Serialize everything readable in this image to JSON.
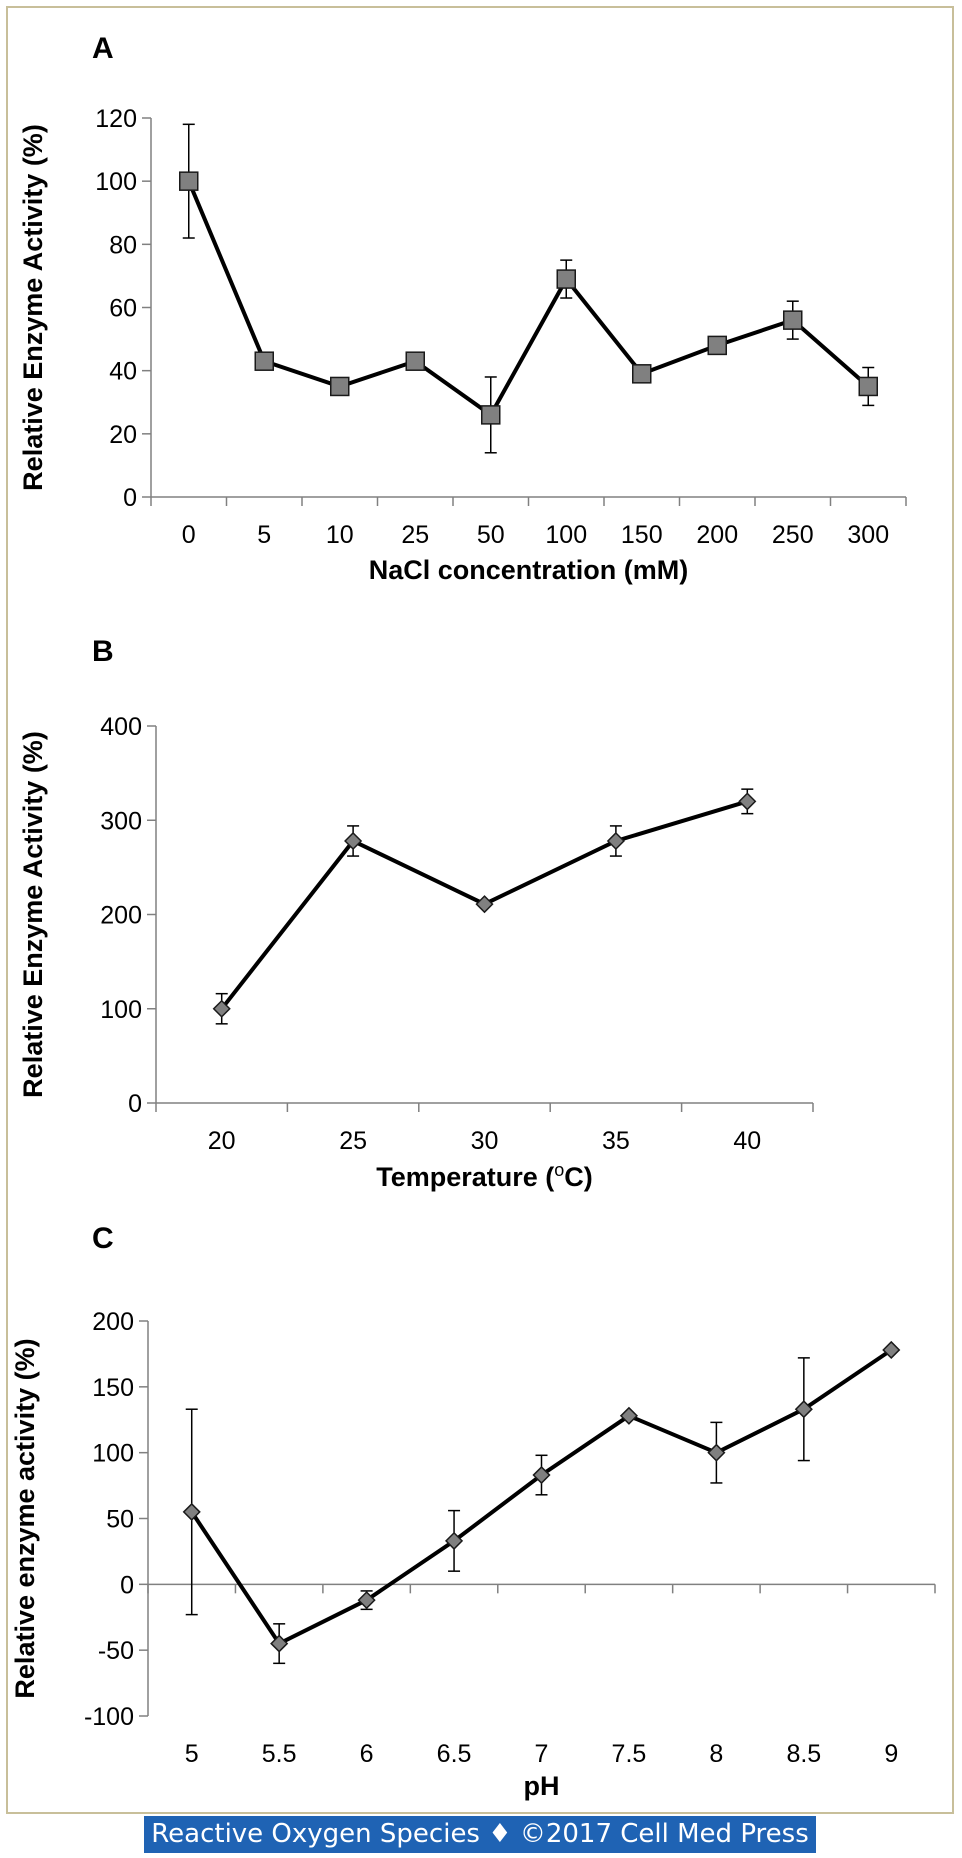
{
  "footer_text": "Reactive Oxygen Species ♦ ©2017 Cell Med Press",
  "chart_data": [
    {
      "type": "line",
      "panel_label": "A",
      "title": "",
      "xlabel": "NaCl concentration (mM)",
      "ylabel": "Relative Enzyme Activity (%)",
      "categories": [
        "0",
        "5",
        "10",
        "25",
        "50",
        "100",
        "150",
        "200",
        "250",
        "300"
      ],
      "values": [
        100,
        43,
        35,
        43,
        26,
        69,
        39,
        48,
        56,
        35
      ],
      "error": [
        18,
        0,
        0,
        0,
        12,
        6,
        0,
        0,
        6,
        6
      ],
      "ylim": [
        0,
        120
      ],
      "yticks": [
        0,
        20,
        40,
        60,
        80,
        100,
        120
      ],
      "marker": "square",
      "grid": false,
      "zero_line": false
    },
    {
      "type": "line",
      "panel_label": "B",
      "title": "",
      "xlabel": "Temperature (",
      "xlabel_sup": "o",
      "xlabel_after": "C)",
      "ylabel": "Relative Enzyme Activity (%)",
      "categories": [
        "20",
        "25",
        "30",
        "35",
        "40"
      ],
      "values": [
        100,
        278,
        211,
        278,
        320
      ],
      "error": [
        16,
        16,
        0,
        16,
        13
      ],
      "ylim": [
        0,
        400
      ],
      "yticks": [
        0,
        100,
        200,
        300,
        400
      ],
      "marker": "diamond",
      "grid": false,
      "zero_line": false
    },
    {
      "type": "line",
      "panel_label": "C",
      "title": "",
      "xlabel": "pH",
      "ylabel": "Relative enzyme activity (%)",
      "categories": [
        "5",
        "5.5",
        "6",
        "6.5",
        "7",
        "7.5",
        "8",
        "8.5",
        "9"
      ],
      "values": [
        55,
        -45,
        -12,
        33,
        83,
        128,
        100,
        133,
        178
      ],
      "error": [
        78,
        15,
        7,
        23,
        15,
        0,
        23,
        39,
        0
      ],
      "ylim": [
        -100,
        200
      ],
      "yticks": [
        -100,
        -50,
        0,
        50,
        100,
        150,
        200
      ],
      "marker": "diamond",
      "grid": false,
      "zero_line": true
    }
  ]
}
